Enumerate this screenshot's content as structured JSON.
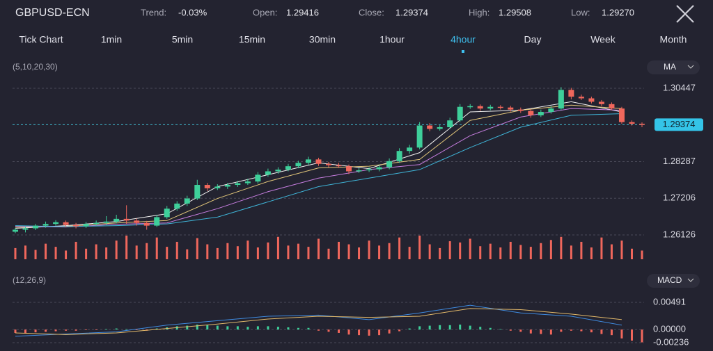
{
  "header": {
    "symbol": "GBPUSD-ECN",
    "trend": {
      "label": "Trend:",
      "value": "-0.03%"
    },
    "open": {
      "label": "Open:",
      "value": "1.29416"
    },
    "close": {
      "label": "Close:",
      "value": "1.29374"
    },
    "high": {
      "label": "High:",
      "value": "1.29508"
    },
    "low": {
      "label": "Low:",
      "value": "1.29270"
    }
  },
  "tabs": {
    "items": [
      "Tick Chart",
      "1min",
      "5min",
      "15min",
      "30min",
      "1hour",
      "4hour",
      "Day",
      "Week",
      "Month"
    ],
    "active": "4hour"
  },
  "indicators": {
    "ma": {
      "name": "MA",
      "params": "(5,10,20,30)"
    },
    "macd": {
      "name": "MACD",
      "params": "(12,26,9)"
    }
  },
  "chart_data": {
    "type": "candlestick",
    "ylim": [
      1.26126,
      1.30447
    ],
    "yticks": [
      1.30447,
      1.28287,
      1.27206,
      1.26126
    ],
    "last_price": 1.29374,
    "up_color": "#3ecf9a",
    "down_color": "#f0675c",
    "volume_color": "#f0675c",
    "ohlc": [
      [
        1.2622,
        1.2633,
        1.2618,
        1.2628
      ],
      [
        1.2628,
        1.2637,
        1.262,
        1.2632
      ],
      [
        1.2632,
        1.2645,
        1.2627,
        1.264
      ],
      [
        1.264,
        1.2652,
        1.2634,
        1.2645
      ],
      [
        1.2645,
        1.2656,
        1.264,
        1.265
      ],
      [
        1.265,
        1.2655,
        1.2636,
        1.2642
      ],
      [
        1.2642,
        1.2648,
        1.2632,
        1.2638
      ],
      [
        1.2638,
        1.2651,
        1.2633,
        1.2645
      ],
      [
        1.2645,
        1.2655,
        1.264,
        1.2648
      ],
      [
        1.2648,
        1.2668,
        1.2642,
        1.2652
      ],
      [
        1.2652,
        1.2672,
        1.2647,
        1.266
      ],
      [
        1.266,
        1.27,
        1.2645,
        1.2655
      ],
      [
        1.2655,
        1.2661,
        1.264,
        1.2648
      ],
      [
        1.2648,
        1.2654,
        1.2628,
        1.264
      ],
      [
        1.264,
        1.2672,
        1.2636,
        1.2665
      ],
      [
        1.2665,
        1.2698,
        1.266,
        1.269
      ],
      [
        1.269,
        1.2712,
        1.2684,
        1.2705
      ],
      [
        1.2705,
        1.2728,
        1.2698,
        1.272
      ],
      [
        1.272,
        1.2775,
        1.2715,
        1.276
      ],
      [
        1.276,
        1.2766,
        1.2742,
        1.275
      ],
      [
        1.275,
        1.2762,
        1.2745,
        1.2755
      ],
      [
        1.2755,
        1.2766,
        1.2748,
        1.276
      ],
      [
        1.276,
        1.2772,
        1.2754,
        1.2765
      ],
      [
        1.2765,
        1.2778,
        1.276,
        1.277
      ],
      [
        1.277,
        1.2798,
        1.2764,
        1.279
      ],
      [
        1.279,
        1.2808,
        1.2784,
        1.28
      ],
      [
        1.28,
        1.2812,
        1.2793,
        1.2805
      ],
      [
        1.2805,
        1.2822,
        1.28,
        1.2815
      ],
      [
        1.2815,
        1.2831,
        1.2809,
        1.2825
      ],
      [
        1.2825,
        1.2843,
        1.2819,
        1.2835
      ],
      [
        1.2835,
        1.284,
        1.2816,
        1.2822
      ],
      [
        1.2822,
        1.2828,
        1.2812,
        1.2818
      ],
      [
        1.2818,
        1.2825,
        1.281,
        1.2815
      ],
      [
        1.2815,
        1.282,
        1.2792,
        1.28
      ],
      [
        1.28,
        1.281,
        1.2795,
        1.2803
      ],
      [
        1.2803,
        1.2812,
        1.2798,
        1.2806
      ],
      [
        1.2806,
        1.2818,
        1.28,
        1.2812
      ],
      [
        1.2812,
        1.2838,
        1.2806,
        1.283
      ],
      [
        1.283,
        1.2868,
        1.2825,
        1.286
      ],
      [
        1.286,
        1.2878,
        1.2852,
        1.287
      ],
      [
        1.287,
        1.2945,
        1.2865,
        1.2935
      ],
      [
        1.2935,
        1.2942,
        1.2918,
        1.2925
      ],
      [
        1.2925,
        1.2936,
        1.292,
        1.293
      ],
      [
        1.293,
        1.2958,
        1.2925,
        1.295
      ],
      [
        1.295,
        1.2998,
        1.2945,
        1.299
      ],
      [
        1.299,
        1.2998,
        1.2984,
        1.2992
      ],
      [
        1.2992,
        1.2997,
        1.2978,
        1.2985
      ],
      [
        1.2985,
        1.2996,
        1.298,
        1.299
      ],
      [
        1.299,
        1.2995,
        1.2982,
        1.2988
      ],
      [
        1.2988,
        1.2993,
        1.2976,
        1.2982
      ],
      [
        1.2982,
        1.2988,
        1.2972,
        1.2978
      ],
      [
        1.2978,
        1.2984,
        1.2958,
        1.2965
      ],
      [
        1.2965,
        1.2982,
        1.296,
        1.2975
      ],
      [
        1.2975,
        1.2992,
        1.297,
        1.2985
      ],
      [
        1.2985,
        1.3048,
        1.298,
        1.304
      ],
      [
        1.304,
        1.3046,
        1.3012,
        1.302
      ],
      [
        1.302,
        1.3026,
        1.301,
        1.3015
      ],
      [
        1.3015,
        1.302,
        1.3,
        1.3005
      ],
      [
        1.3005,
        1.301,
        1.2992,
        1.2998
      ],
      [
        1.2998,
        1.3003,
        1.298,
        1.2985
      ],
      [
        1.2985,
        1.299,
        1.294,
        1.2945
      ],
      [
        1.2945,
        1.295,
        1.2935,
        1.294
      ],
      [
        1.294,
        1.2944,
        1.293,
        1.2937
      ]
    ],
    "volume": [
      18,
      22,
      15,
      25,
      20,
      14,
      28,
      17,
      24,
      19,
      30,
      38,
      22,
      26,
      35,
      20,
      28,
      16,
      34,
      24,
      18,
      26,
      21,
      30,
      19,
      27,
      36,
      22,
      25,
      20,
      33,
      17,
      28,
      24,
      19,
      30,
      22,
      26,
      35,
      20,
      38,
      24,
      18,
      29,
      27,
      33,
      21,
      25,
      19,
      28,
      23,
      20,
      26,
      31,
      36,
      22,
      28,
      19,
      35,
      24,
      30,
      17,
      14
    ],
    "ma_x": [
      0,
      5,
      10,
      15,
      20,
      25,
      30,
      35,
      40,
      45,
      50,
      55,
      60
    ],
    "ma": [
      {
        "color": "#f2f2f2",
        "values": [
          1.2632,
          1.264,
          1.2652,
          1.2675,
          1.2755,
          1.279,
          1.2825,
          1.2808,
          1.2855,
          1.2975,
          1.298,
          1.3005,
          1.2975
        ]
      },
      {
        "color": "#e3c77a",
        "values": [
          1.2635,
          1.2638,
          1.2648,
          1.2655,
          1.272,
          1.277,
          1.281,
          1.2815,
          1.2835,
          1.295,
          1.298,
          1.2995,
          1.2985
        ]
      },
      {
        "color": "#c77ee0",
        "values": [
          1.2638,
          1.2636,
          1.2644,
          1.2648,
          1.269,
          1.274,
          1.278,
          1.2805,
          1.282,
          1.2905,
          1.296,
          1.2985,
          1.298
        ]
      },
      {
        "color": "#3fb5d8",
        "values": [
          1.264,
          1.2637,
          1.264,
          1.2645,
          1.2665,
          1.271,
          1.2755,
          1.278,
          1.2805,
          1.287,
          1.293,
          1.2965,
          1.297
        ]
      }
    ],
    "macd": {
      "ylim": [
        -0.00236,
        0.00491
      ],
      "yticks": [
        0.00491,
        {
          "value": 0,
          "label": "0.00000"
        },
        -0.00236
      ],
      "histogram": [
        -0.0006,
        -0.0007,
        -0.0005,
        -0.0004,
        -0.0003,
        -0.0002,
        -0.0002,
        -0.0001,
        -0.0001,
        0.0001,
        0.0002,
        0.0001,
        -0.0001,
        -0.0002,
        0.0002,
        0.0004,
        0.0006,
        0.0007,
        0.0009,
        0.0008,
        0.0007,
        0.0006,
        0.0006,
        0.0005,
        0.0006,
        0.0006,
        0.0005,
        0.0004,
        0.0003,
        0.0003,
        -0.0002,
        -0.0004,
        -0.0006,
        -0.0009,
        -0.001,
        -0.0011,
        -0.001,
        -0.0007,
        -0.0003,
        0.0002,
        0.0006,
        0.0007,
        0.0008,
        0.0008,
        0.0009,
        0.0007,
        0.0005,
        0.0003,
        0.0001,
        -0.0002,
        -0.0004,
        -0.0007,
        -0.0008,
        -0.0009,
        -0.0004,
        -0.0002,
        -0.0003,
        -0.0005,
        -0.0008,
        -0.001,
        -0.0016,
        -0.002,
        -0.0023
      ],
      "lines": [
        {
          "color": "#3f8be0",
          "values": [
            -0.0012,
            -0.0008,
            -0.0004,
            0.0008,
            0.0016,
            0.0024,
            0.0026,
            0.0018,
            0.003,
            0.0044,
            0.003,
            0.0024,
            0.0008
          ]
        },
        {
          "color": "#e3b96a",
          "values": [
            -0.0006,
            -0.0009,
            -0.0006,
            0.0002,
            0.001,
            0.0019,
            0.0024,
            0.0022,
            0.0024,
            0.0038,
            0.0036,
            0.0028,
            0.0018
          ]
        }
      ]
    }
  }
}
